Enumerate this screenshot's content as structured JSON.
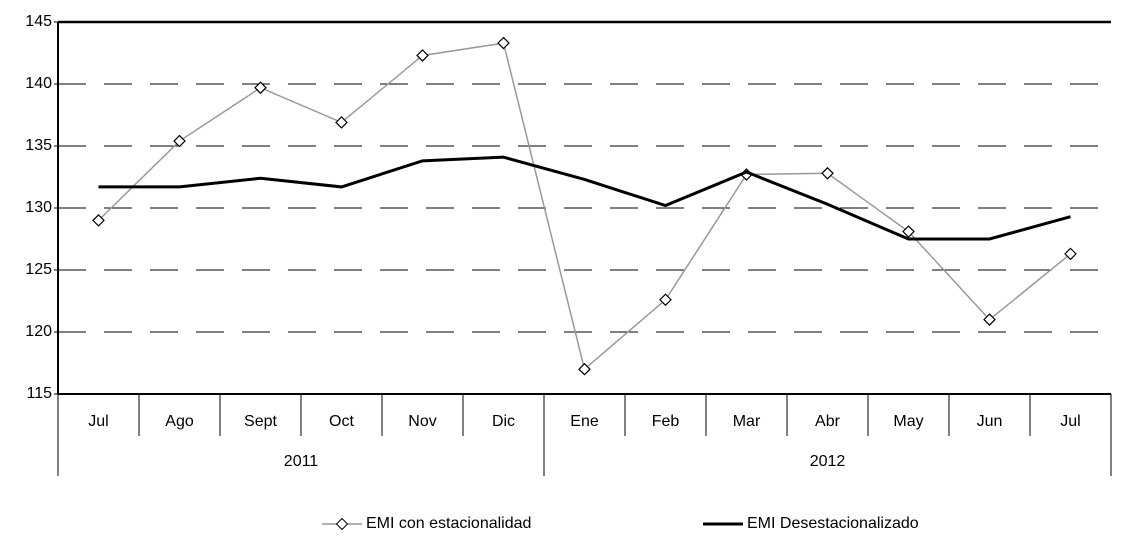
{
  "chart_data": {
    "type": "line",
    "categories": [
      "Jul",
      "Ago",
      "Sept",
      "Oct",
      "Nov",
      "Dic",
      "Ene",
      "Feb",
      "Mar",
      "Abr",
      "May",
      "Jun",
      "Jul"
    ],
    "category_groups": [
      {
        "label": "2011",
        "start": 0,
        "end": 5
      },
      {
        "label": "2012",
        "start": 6,
        "end": 12
      }
    ],
    "series": [
      {
        "name": "EMI con estacionalidad",
        "color": "#999999",
        "marker": "diamond",
        "values": [
          129.0,
          135.4,
          139.7,
          136.9,
          142.3,
          143.3,
          117.0,
          122.6,
          132.7,
          132.8,
          128.1,
          121.0,
          126.3
        ]
      },
      {
        "name": "EMI Desestacionalizado",
        "color": "#000000",
        "marker": "none",
        "values": [
          131.7,
          131.7,
          132.4,
          131.7,
          133.8,
          134.1,
          132.3,
          130.2,
          132.9,
          130.3,
          127.5,
          127.5,
          129.3
        ]
      }
    ],
    "ylim": [
      115,
      145
    ],
    "yticks": [
      115,
      120,
      125,
      130,
      135,
      140,
      145
    ],
    "grid": true,
    "legend": "bottom"
  }
}
